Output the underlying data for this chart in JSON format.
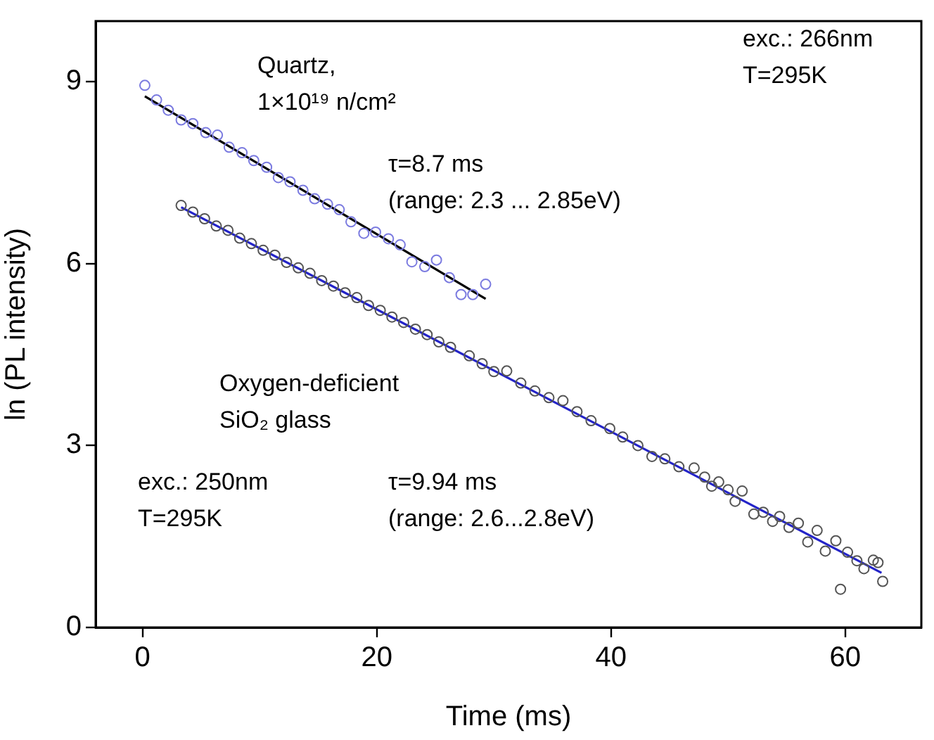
{
  "chart_data": {
    "type": "scatter",
    "xlabel": "Time (ms)",
    "ylabel": "ln (PL intensity)",
    "xlim": [
      -4,
      66.5
    ],
    "ylim": [
      0,
      10
    ],
    "xticks": [
      0,
      20,
      40,
      60
    ],
    "yticks": [
      0,
      3,
      6,
      9
    ],
    "grid": false,
    "legend": false,
    "annotations": [
      "Quartz,",
      "1×10¹⁹ n/cm²",
      "τ=8.7 ms",
      "(range: 2.3 ... 2.85eV)",
      "exc.: 266nm",
      "T=295K",
      "Oxygen-deficient",
      "SiO₂ glass",
      "exc.: 250nm",
      "T=295K",
      "τ=9.94 ms",
      "(range: 2.6...2.8eV)"
    ],
    "series": [
      {
        "marker": "circle",
        "color": "#7b7be0",
        "x": [
          0.2,
          1.2,
          2.2,
          3.3,
          4.3,
          5.4,
          6.4,
          7.4,
          8.5,
          9.5,
          10.6,
          11.6,
          12.6,
          13.7,
          14.7,
          15.8,
          16.8,
          17.8,
          18.9,
          19.9,
          21.0,
          22.0,
          23.0,
          24.1,
          25.1,
          26.2,
          27.2,
          28.2,
          29.3
        ],
        "values": [
          8.94,
          8.7,
          8.53,
          8.37,
          8.31,
          8.16,
          8.12,
          7.92,
          7.83,
          7.7,
          7.59,
          7.42,
          7.35,
          7.21,
          7.07,
          6.98,
          6.89,
          6.69,
          6.5,
          6.52,
          6.41,
          6.31,
          6.03,
          5.95,
          6.06,
          5.77,
          5.49,
          5.49,
          5.66
        ]
      },
      {
        "type": "line",
        "marker": "none",
        "line_style": "solid",
        "color": "#000000",
        "x": [
          0.2,
          29.3
        ],
        "values": [
          8.76,
          5.42
        ]
      },
      {
        "marker": "circle",
        "color": "#555555",
        "x": [
          3.3,
          4.3,
          5.3,
          6.3,
          7.3,
          8.3,
          9.3,
          10.3,
          11.3,
          12.3,
          13.3,
          14.3,
          15.3,
          16.3,
          17.3,
          18.3,
          19.3,
          20.3,
          21.3,
          22.3,
          23.3,
          24.3,
          25.3,
          26.3,
          27.9,
          29,
          30,
          31.1,
          32.3,
          33.5,
          34.7,
          35.9,
          37.1,
          38.3,
          39.9,
          41,
          42.3,
          43.5,
          44.6,
          45.8,
          47.1,
          48,
          48.6,
          49.2,
          50,
          50.6,
          51.2,
          52.2,
          53,
          53.8,
          54.4,
          55.2,
          56,
          56.8,
          57.6,
          58.3,
          59.2,
          59.6,
          60.2,
          61,
          61.6,
          62.4,
          62.8,
          63.2
        ],
        "values": [
          6.96,
          6.85,
          6.74,
          6.62,
          6.55,
          6.42,
          6.33,
          6.22,
          6.14,
          6.02,
          5.93,
          5.84,
          5.72,
          5.63,
          5.52,
          5.44,
          5.31,
          5.23,
          5.12,
          5.03,
          4.92,
          4.83,
          4.71,
          4.62,
          4.48,
          4.35,
          4.22,
          4.23,
          4.03,
          3.9,
          3.79,
          3.74,
          3.56,
          3.41,
          3.28,
          3.14,
          3.0,
          2.82,
          2.78,
          2.65,
          2.63,
          2.48,
          2.33,
          2.4,
          2.27,
          2.08,
          2.25,
          1.87,
          1.9,
          1.75,
          1.83,
          1.65,
          1.72,
          1.41,
          1.6,
          1.26,
          1.43,
          0.63,
          1.24,
          1.1,
          0.97,
          1.11,
          1.07,
          0.76
        ]
      },
      {
        "type": "line",
        "marker": "none",
        "line_style": "solid",
        "color": "#2424c8",
        "x": [
          3.3,
          63.1
        ],
        "values": [
          6.93,
          0.9
        ]
      }
    ]
  }
}
